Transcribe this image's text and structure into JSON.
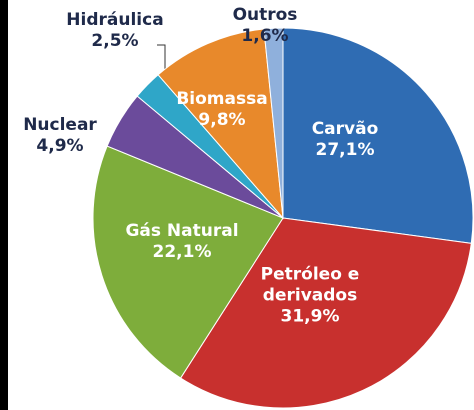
{
  "chart_data": {
    "type": "pie",
    "categories": [
      "Carvão",
      "Petróleo e derivados",
      "Gás Natural",
      "Nuclear",
      "Hidráulica",
      "Biomassa",
      "Outros"
    ],
    "values": [
      27.1,
      31.9,
      22.1,
      4.9,
      2.5,
      9.8,
      1.6
    ],
    "value_labels": [
      "27,1%",
      "31,9%",
      "22,1%",
      "4,9%",
      "2,5%",
      "9,8%",
      "1,6%"
    ],
    "colors": [
      "#2f6cb3",
      "#c8302e",
      "#7ead3b",
      "#6b4b9b",
      "#2fa6c8",
      "#e8892b",
      "#8fb0dc"
    ]
  }
}
